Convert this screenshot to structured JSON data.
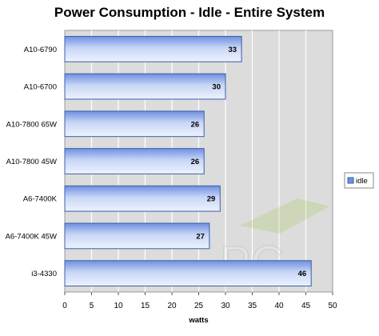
{
  "chart_data": {
    "type": "bar",
    "orientation": "horizontal",
    "title": "Power Consumption - Idle - Entire System",
    "xlabel": "watts",
    "ylabel": "",
    "categories": [
      "A10-6790",
      "A10-6700",
      "A10-7800 65W",
      "A10-7800 45W",
      "A6-7400K",
      "A6-7400K 45W",
      "i3-4330"
    ],
    "series": [
      {
        "name": "idle",
        "values": [
          33,
          30,
          26,
          26,
          29,
          27,
          46
        ]
      }
    ],
    "xlim": [
      0,
      50
    ],
    "xticks": [
      0,
      5,
      10,
      15,
      20,
      25,
      30,
      35,
      40,
      45,
      50
    ],
    "grid": true,
    "legend_position": "right",
    "colors": {
      "bar_edge": "#3a5fa8",
      "bar_top": "#6f8fe0",
      "bar_mid": "#c8d6f6",
      "bar_bottom": "#eef2fd",
      "plot_background": "#dcdcdc",
      "gridline": "#ffffff"
    }
  },
  "watermark": {
    "text": "PC PERSPECTIVE"
  }
}
